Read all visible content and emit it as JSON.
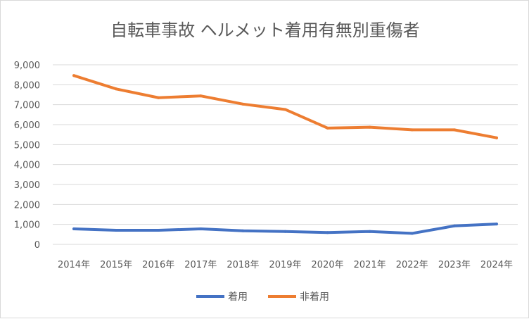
{
  "chart_data": {
    "type": "line",
    "title": "自転車事故 ヘルメット着用有無別重傷者",
    "categories": [
      "2014年",
      "2015年",
      "2016年",
      "2017年",
      "2018年",
      "2019年",
      "2020年",
      "2021年",
      "2022年",
      "2023年",
      "2024年"
    ],
    "series": [
      {
        "name": "着用",
        "color": "#4472C4",
        "values": [
          775,
          705,
          705,
          775,
          680,
          645,
          590,
          645,
          550,
          925,
          1020
        ]
      },
      {
        "name": "非着用",
        "color": "#ED7D31",
        "values": [
          8460,
          7790,
          7350,
          7440,
          7030,
          6760,
          5830,
          5870,
          5740,
          5740,
          5340
        ]
      }
    ],
    "yticks": [
      "0",
      "1,000",
      "2,000",
      "3,000",
      "4,000",
      "5,000",
      "6,000",
      "7,000",
      "8,000",
      "9,000"
    ],
    "ylim": [
      0,
      9000
    ],
    "grid": true,
    "legend": "bottom"
  }
}
